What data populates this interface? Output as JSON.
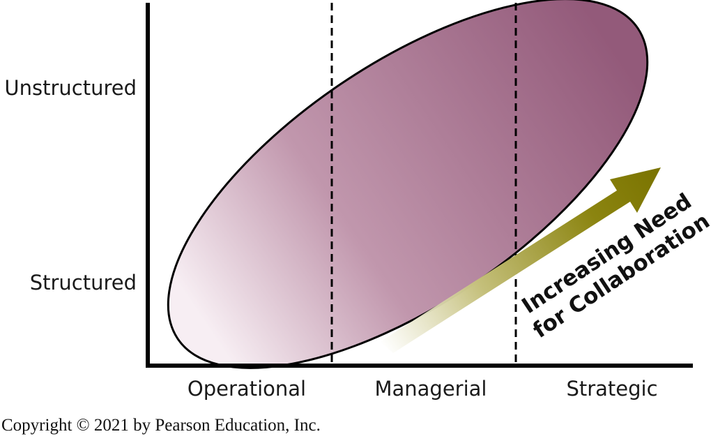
{
  "y_levels": {
    "top": "Unstructured",
    "bottom": "Structured"
  },
  "x_levels": [
    "Operational",
    "Managerial",
    "Strategic"
  ],
  "arrow": {
    "line1": "Increasing Need",
    "line2": "for Collaboration",
    "color": "#7a7300"
  },
  "ellipse": {
    "color_start": "#f7eef3",
    "color_end": "#935a7a",
    "outline": "#000000"
  },
  "copyright": "Copyright © 2021 by Pearson Education, Inc."
}
